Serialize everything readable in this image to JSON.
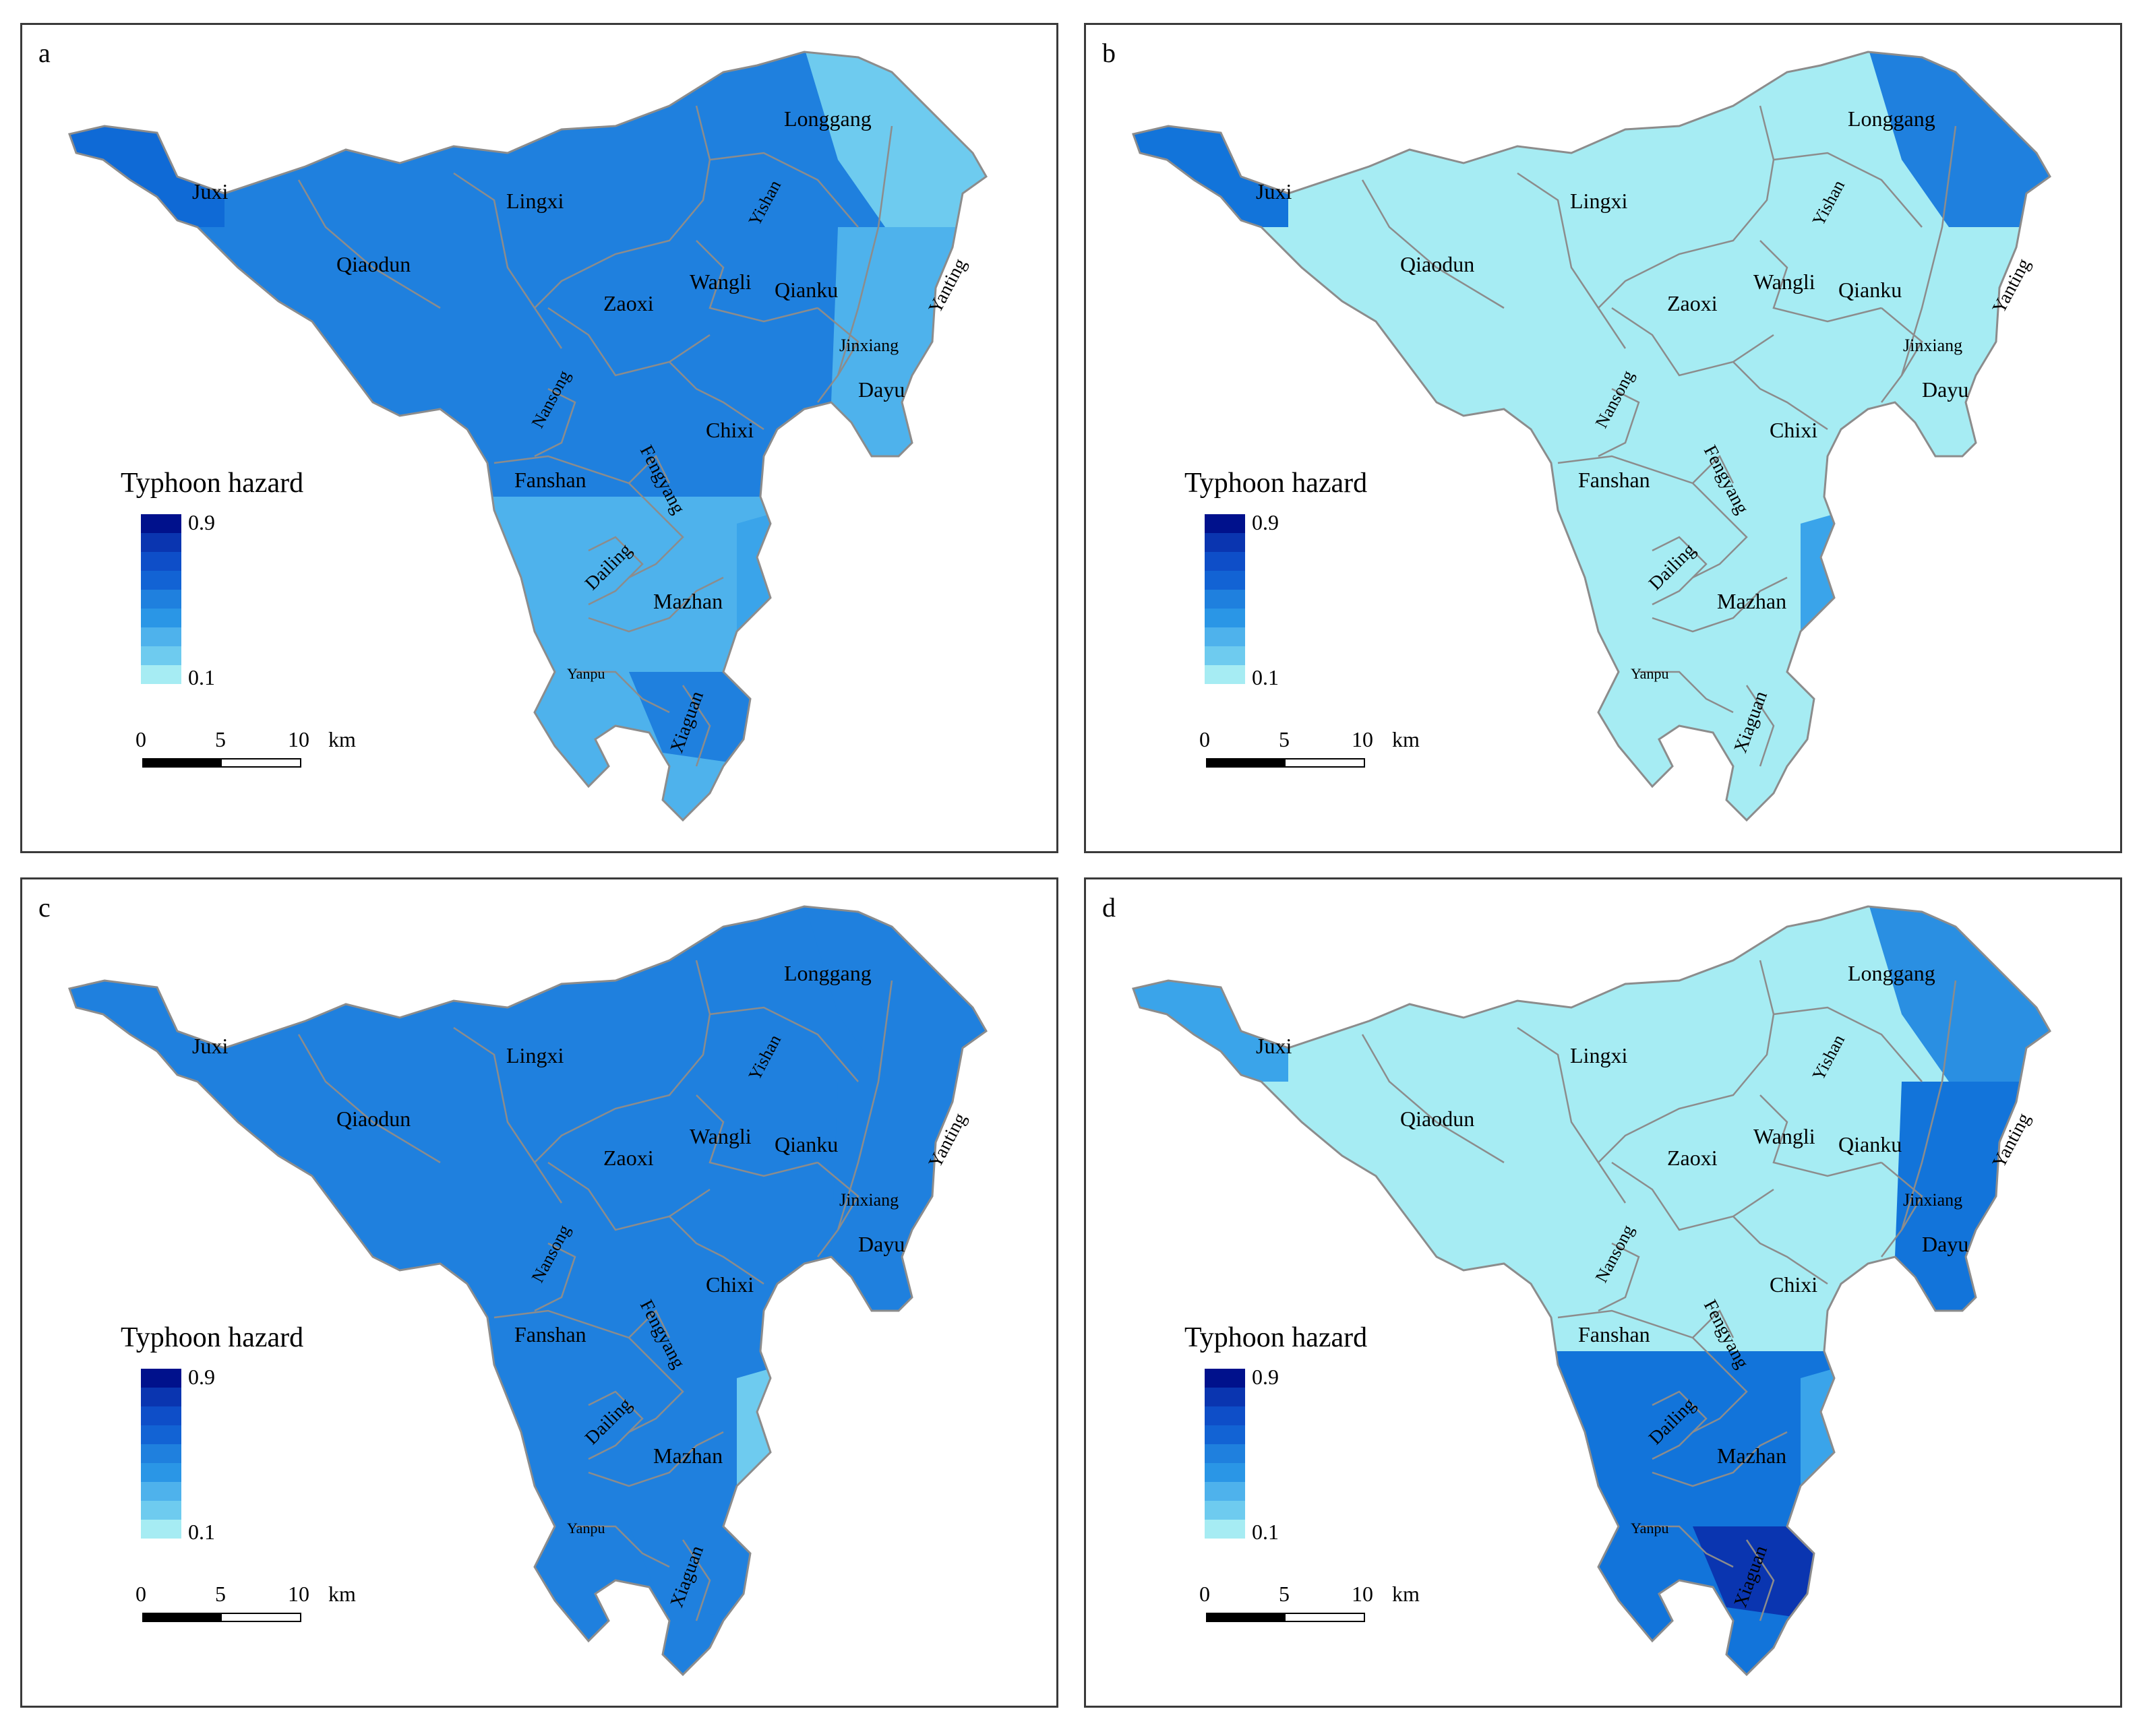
{
  "panels": [
    {
      "label": "a",
      "fills": {
        "base": "#1f80de",
        "west": "#0f6ad6",
        "northeast": "#6ecbef",
        "east": "#4eb2ec",
        "mid": "#0f6ad6",
        "south": "#4eb2ec",
        "coast": "#3aa4ea",
        "dark": "#1f80de"
      }
    },
    {
      "label": "b",
      "fills": {
        "base": "#a6ecf3",
        "west": "#1274da",
        "northeast": "#1f80de",
        "east": "#a6ecf3",
        "mid": "#a6ecf3",
        "south": "#a6ecf3",
        "coast": "#3aa4ea",
        "dark": "#a6ecf3"
      }
    },
    {
      "label": "c",
      "fills": {
        "base": "#1f80de",
        "west": "#1f80de",
        "northeast": "#1f80de",
        "east": "#1f80de",
        "mid": "#1f80de",
        "south": "#1f80de",
        "coast": "#6ecbef",
        "dark": "#1f80de"
      }
    },
    {
      "label": "d",
      "fills": {
        "base": "#a6ecf3",
        "west": "#3aa4ea",
        "northeast": "#2a8fe2",
        "east": "#1274da",
        "mid": "#a6ecf3",
        "south": "#1274da",
        "coast": "#3aa4ea",
        "dark": "#0a35b0"
      }
    }
  ],
  "towns": [
    "Longgang",
    "Juxi",
    "Lingxi",
    "Yishan",
    "Qiaodun",
    "Wangli",
    "Qianku",
    "Yanting",
    "Zaoxi",
    "Jinxiang",
    "Nansong",
    "Dayu",
    "Chixi",
    "Fanshan",
    "Fengyang",
    "Dailing",
    "Mazhan",
    "Yanpu",
    "Xiaguan"
  ],
  "legend": {
    "title": "Typhoon hazard",
    "max": "0.9",
    "min": "0.1",
    "ramp": [
      "#00118c",
      "#0a35b0",
      "#0e4ec8",
      "#1263d4",
      "#1f80de",
      "#2a96e6",
      "#4eb2ec",
      "#6ecbef",
      "#a6ecf3"
    ]
  },
  "scale": {
    "ticks": [
      "0",
      "5",
      "10"
    ],
    "unit": "km"
  },
  "colors": {
    "boundary": "#8c8c8c",
    "frame": "#3a3a3a"
  }
}
